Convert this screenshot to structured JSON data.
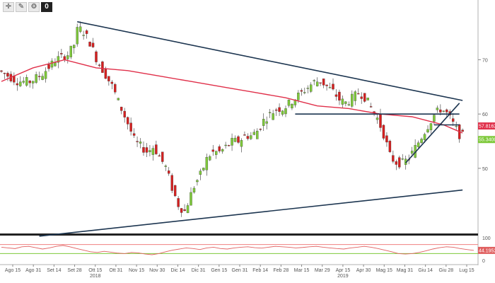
{
  "toolbar": {
    "buttons": [
      {
        "name": "crosshair-icon",
        "glyph": "✛"
      },
      {
        "name": "pencil-icon",
        "glyph": "✎"
      },
      {
        "name": "settings-icon",
        "glyph": "⚙"
      },
      {
        "name": "zero-button",
        "glyph": "0"
      }
    ]
  },
  "colors": {
    "bull": "#7ec93a",
    "bear": "#d62020",
    "ma200": "#e0304a",
    "trend": "#1c3550",
    "rsi": "#e06060",
    "rsi_upper": "#f08080",
    "rsi_lower": "#7ec93a"
  },
  "chart_data": [
    {
      "type": "candlestick",
      "title": "",
      "y_ticks": [
        "70",
        "60",
        "50"
      ],
      "ylim": [
        38,
        81
      ],
      "x_ticks": [
        "Ago 15",
        "Ago 31",
        "Set 14",
        "Set 28",
        "Ott 15",
        "Ott 31",
        "Nov 15",
        "Nov 30",
        "Dic 14",
        "Dic 31",
        "Gen 15",
        "Gen 31",
        "Feb 14",
        "Feb 28",
        "Mar 15",
        "Mar 29",
        "Apr 15",
        "Apr 30",
        "Mag 15",
        "Mag 31",
        "Giu 14",
        "Giu 28",
        "Lug 15"
      ],
      "year_labels": [
        "2018",
        "2019"
      ],
      "close_path": [
        [
          0,
          68
        ],
        [
          6,
          66
        ],
        [
          10,
          66
        ],
        [
          14,
          67.5
        ],
        [
          18,
          70
        ],
        [
          22,
          71
        ],
        [
          24,
          73
        ],
        [
          25,
          76
        ],
        [
          27,
          75
        ],
        [
          29,
          73
        ],
        [
          31,
          70
        ],
        [
          33,
          68
        ],
        [
          36,
          65
        ],
        [
          38,
          62
        ],
        [
          41,
          58
        ],
        [
          43,
          55
        ],
        [
          45,
          54
        ],
        [
          47,
          53
        ],
        [
          49,
          54
        ],
        [
          51,
          52
        ],
        [
          53,
          50
        ],
        [
          55,
          46
        ],
        [
          57,
          43
        ],
        [
          59,
          42
        ],
        [
          60,
          44
        ],
        [
          62,
          47
        ],
        [
          64,
          49
        ],
        [
          66,
          52
        ],
        [
          68,
          53
        ],
        [
          70,
          53
        ],
        [
          72,
          54
        ],
        [
          74,
          55
        ],
        [
          76,
          55
        ],
        [
          78,
          56
        ],
        [
          80,
          56
        ],
        [
          82,
          57
        ],
        [
          84,
          59
        ],
        [
          86,
          60
        ],
        [
          88,
          61
        ],
        [
          90,
          61
        ],
        [
          92,
          62
        ],
        [
          94,
          63
        ],
        [
          96,
          64
        ],
        [
          98,
          65
        ],
        [
          100,
          66
        ],
        [
          102,
          66
        ],
        [
          104,
          65
        ],
        [
          106,
          64
        ],
        [
          108,
          62.5
        ],
        [
          110,
          62
        ],
        [
          112,
          63
        ],
        [
          114,
          64
        ],
        [
          116,
          63
        ],
        [
          118,
          61
        ],
        [
          120,
          59
        ],
        [
          122,
          56
        ],
        [
          124,
          52
        ],
        [
          126,
          51
        ],
        [
          128,
          51
        ],
        [
          130,
          52
        ],
        [
          132,
          54
        ],
        [
          134,
          56
        ],
        [
          136,
          58
        ],
        [
          138,
          60
        ],
        [
          140,
          61
        ],
        [
          142,
          60
        ],
        [
          144,
          58
        ],
        [
          146,
          56
        ]
      ],
      "ma200_path": [
        [
          0,
          66
        ],
        [
          10,
          68.5
        ],
        [
          20,
          70
        ],
        [
          30,
          68.5
        ],
        [
          40,
          68
        ],
        [
          50,
          67
        ],
        [
          60,
          66
        ],
        [
          70,
          65
        ],
        [
          80,
          64
        ],
        [
          90,
          63
        ],
        [
          100,
          61.5
        ],
        [
          110,
          61
        ],
        [
          120,
          60
        ],
        [
          130,
          59.5
        ],
        [
          140,
          58
        ],
        [
          146,
          56.5
        ]
      ],
      "trendlines": [
        {
          "from": [
            24,
            77
          ],
          "to": [
            146,
            62.5
          ]
        },
        {
          "from": [
            12,
            37.5
          ],
          "to": [
            146,
            46
          ]
        },
        {
          "from": [
            93,
            60
          ],
          "to": [
            145,
            60
          ]
        },
        {
          "from": [
            128,
            51
          ],
          "to": [
            145,
            62
          ]
        },
        {
          "from": [
            137,
            58
          ],
          "to": [
            145,
            58
          ]
        }
      ],
      "price_tags": [
        {
          "value": "57.8162",
          "price": 57.8,
          "color": "#e0304a"
        },
        {
          "value": "55.3400",
          "price": 55.3,
          "color": "#7ec93a"
        }
      ]
    },
    {
      "type": "line",
      "name": "rsi",
      "y_ticks": [
        "100",
        "0"
      ],
      "ylim": [
        0,
        100
      ],
      "levels": [
        70,
        30
      ],
      "value_tag": "44.1952",
      "values": [
        58,
        55,
        52,
        60,
        62,
        56,
        50,
        55,
        62,
        66,
        60,
        52,
        45,
        38,
        35,
        40,
        36,
        32,
        30,
        35,
        33,
        28,
        25,
        30,
        38,
        45,
        50,
        55,
        52,
        48,
        55,
        58,
        52,
        50,
        55,
        58,
        60,
        56,
        54,
        58,
        62,
        60,
        58,
        55,
        57,
        60,
        62,
        58,
        55,
        52,
        50,
        55,
        58,
        62,
        58,
        52,
        45,
        38,
        30,
        28,
        30,
        35,
        42,
        50,
        56,
        60,
        58,
        52,
        48,
        44
      ]
    }
  ]
}
